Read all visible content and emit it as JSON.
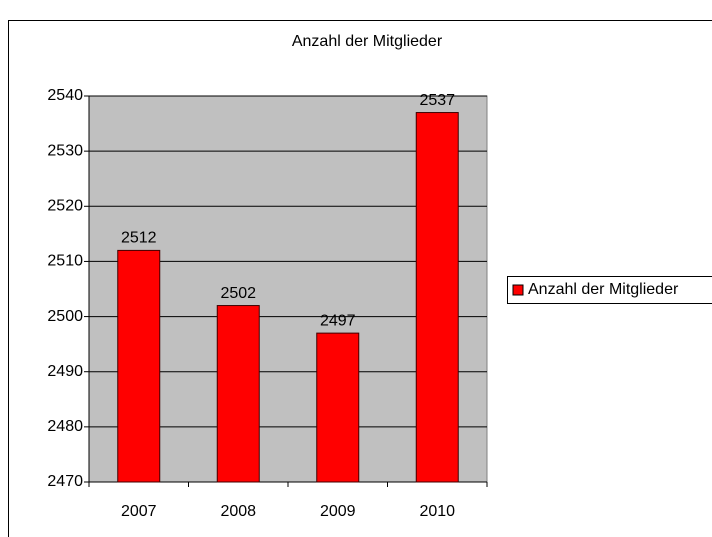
{
  "chart_data": {
    "type": "bar",
    "title": "Anzahl der Mitglieder",
    "categories": [
      "2007",
      "2008",
      "2009",
      "2010"
    ],
    "series": [
      {
        "name": "Anzahl der Mitglieder",
        "color": "#ff0000",
        "values": [
          2512,
          2502,
          2497,
          2537
        ]
      }
    ],
    "ylim": [
      2470,
      2540
    ],
    "yticks": [
      2470,
      2480,
      2490,
      2500,
      2510,
      2520,
      2530,
      2540
    ],
    "grid": true,
    "legend": "right",
    "plot_background": "#c0c0c0"
  }
}
